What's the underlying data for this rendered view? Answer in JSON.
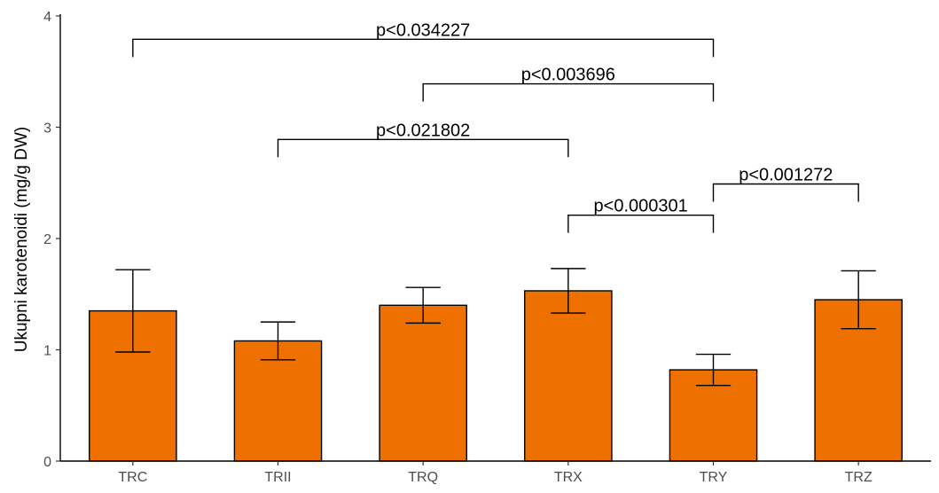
{
  "chart_data": {
    "type": "bar",
    "title": "",
    "xlabel": "",
    "ylabel": "Ukupni karotenoidi (mg/g DW)",
    "ylim": [
      0,
      4
    ],
    "yticks": [
      "0",
      "1",
      "2",
      "3",
      "4"
    ],
    "yticks_values": [
      0,
      1,
      2,
      3,
      4
    ],
    "categories": [
      "TRC",
      "TRII",
      "TRQ",
      "TRX",
      "TRY",
      "TRZ"
    ],
    "values": [
      1.35,
      1.08,
      1.4,
      1.53,
      0.82,
      1.45
    ],
    "errors": [
      0.37,
      0.17,
      0.16,
      0.2,
      0.14,
      0.26
    ],
    "bar_color": "#EE7100",
    "grid": false,
    "comparisons": [
      {
        "from": 0,
        "to": 4,
        "y": 3.79,
        "label": "p<0.034227"
      },
      {
        "from": 2,
        "to": 4,
        "y": 3.39,
        "label": "p<0.003696"
      },
      {
        "from": 1,
        "to": 3,
        "y": 2.89,
        "label": "p<0.021802"
      },
      {
        "from": 4,
        "to": 5,
        "y": 2.49,
        "label": "p<0.001272"
      },
      {
        "from": 3,
        "to": 4,
        "y": 2.21,
        "label": "p<0.000301"
      }
    ]
  }
}
